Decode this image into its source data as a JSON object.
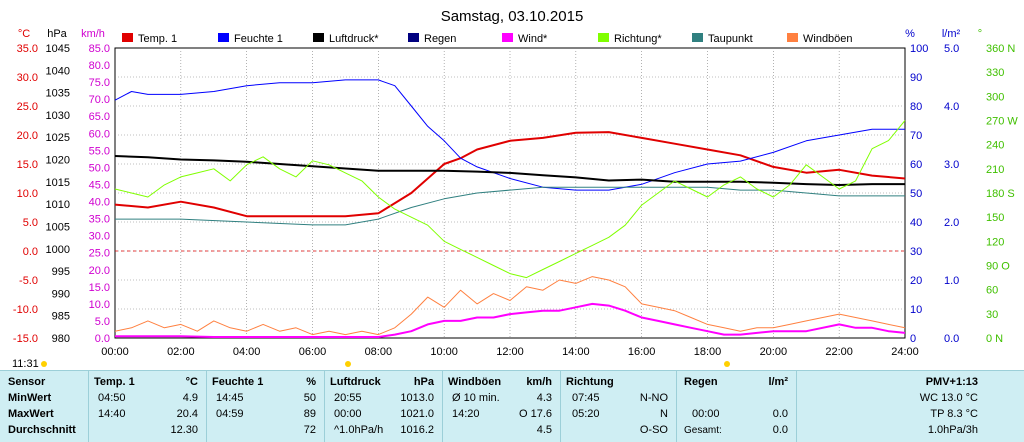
{
  "chart_data": {
    "type": "line",
    "title": "Samstag, 03.10.2015",
    "time_label": "11:31",
    "x_ticks": [
      "00:00",
      "02:00",
      "04:00",
      "06:00",
      "08:00",
      "10:00",
      "12:00",
      "14:00",
      "16:00",
      "18:00",
      "20:00",
      "22:00",
      "24:00"
    ],
    "axes": {
      "temp": {
        "unit": "°C",
        "ticks": [
          "35.0",
          "30.0",
          "25.0",
          "20.0",
          "15.0",
          "10.0",
          "5.0",
          "0.0",
          "-5.0",
          "-10.0",
          "-15.0"
        ],
        "range": [
          -15,
          35
        ],
        "color": "#e00000"
      },
      "press": {
        "unit": "hPa",
        "ticks": [
          "1045",
          "1040",
          "1035",
          "1030",
          "1025",
          "1020",
          "1015",
          "1010",
          "1005",
          "1000",
          "995",
          "990",
          "985",
          "980"
        ],
        "range": [
          980,
          1045
        ],
        "color": "#000000"
      },
      "wind": {
        "unit": "km/h",
        "ticks": [
          "85.0",
          "80.0",
          "75.0",
          "70.0",
          "65.0",
          "60.0",
          "55.0",
          "50.0",
          "45.0",
          "40.0",
          "35.0",
          "30.0",
          "25.0",
          "20.0",
          "15.0",
          "10.0",
          "5.0",
          "0.0"
        ],
        "range": [
          0,
          85
        ],
        "color": "#d000d0"
      },
      "hum": {
        "unit": "%",
        "ticks": [
          "100",
          "90",
          "80",
          "70",
          "60",
          "50",
          "40",
          "30",
          "20",
          "10",
          "0"
        ],
        "range": [
          0,
          100
        ],
        "color": "#0000cc"
      },
      "rain": {
        "unit": "l/m²",
        "ticks": [
          "5.0",
          "4.0",
          "3.0",
          "2.0",
          "1.0",
          "0.0"
        ],
        "range": [
          0,
          5
        ],
        "color": "#0000cc"
      },
      "dir": {
        "unit": "°",
        "ticks": [
          "360 N",
          "330",
          "300",
          "270 W",
          "240",
          "210",
          "180 S",
          "150",
          "120",
          "90 O",
          "60",
          "30",
          "0 N"
        ],
        "range": [
          0,
          360
        ],
        "color": "#40c000"
      }
    },
    "legend": [
      {
        "name": "Temp. 1",
        "color": "#e00000"
      },
      {
        "name": "Feuchte 1",
        "color": "#0000ff"
      },
      {
        "name": "Luftdruck*",
        "color": "#000000"
      },
      {
        "name": "Regen",
        "color": "#000080"
      },
      {
        "name": "Wind*",
        "color": "#ff00ff"
      },
      {
        "name": "Richtung*",
        "color": "#80ff00"
      },
      {
        "name": "Taupunkt",
        "color": "#308080"
      },
      {
        "name": "Windböen",
        "color": "#ff8040"
      }
    ],
    "series": [
      {
        "key": "temp",
        "axis": "temp",
        "color": "#e00000",
        "width": 2,
        "x": [
          0,
          1,
          2,
          3,
          4,
          5,
          6,
          7,
          8,
          9,
          10,
          10.5,
          11,
          12,
          13,
          14,
          15,
          16,
          17,
          18,
          19,
          20,
          21,
          22,
          23,
          24
        ],
        "y": [
          8.0,
          7.5,
          8.5,
          7.5,
          6.0,
          6.0,
          6.0,
          6.0,
          6.5,
          10.0,
          15.0,
          16.0,
          17.5,
          19.0,
          19.5,
          20.4,
          20.5,
          19.5,
          18.5,
          17.5,
          16.5,
          14.5,
          13.5,
          14.0,
          13.0,
          12.5
        ]
      },
      {
        "key": "hum",
        "axis": "hum",
        "color": "#0000ff",
        "width": 1,
        "x": [
          0,
          0.5,
          1,
          2,
          3,
          4,
          5,
          6,
          7,
          8,
          8.5,
          9,
          9.5,
          10,
          10.5,
          11,
          12,
          13,
          14,
          15,
          16,
          17,
          18,
          19,
          20,
          21,
          22,
          23,
          24
        ],
        "y": [
          82,
          85,
          84,
          84,
          85,
          87,
          88,
          88,
          89,
          89,
          87,
          80,
          73,
          68,
          62,
          59,
          55,
          52,
          51,
          51,
          53,
          57,
          60,
          61,
          64,
          68,
          70,
          72,
          72
        ]
      },
      {
        "key": "press",
        "axis": "press",
        "color": "#000000",
        "width": 2,
        "x": [
          0,
          1,
          2,
          3,
          4,
          5,
          6,
          7,
          8,
          9,
          10,
          11,
          12,
          13,
          14,
          15,
          16,
          17,
          18,
          19,
          20,
          21,
          22,
          23,
          24
        ],
        "y": [
          1020.8,
          1020.5,
          1020,
          1019.8,
          1019.5,
          1019,
          1018.5,
          1018,
          1017.5,
          1017.5,
          1017.5,
          1017.3,
          1017,
          1016.5,
          1016,
          1015.3,
          1015.5,
          1015,
          1015,
          1015,
          1014.8,
          1014.5,
          1014.3,
          1014.5,
          1014.5
        ]
      },
      {
        "key": "dew",
        "axis": "temp",
        "color": "#308080",
        "width": 1,
        "x": [
          0,
          2,
          4,
          6,
          7,
          8,
          9,
          10,
          11,
          12,
          13,
          14,
          15,
          16,
          17,
          18,
          19,
          20,
          21,
          22,
          23,
          24
        ],
        "y": [
          5.5,
          5.5,
          5.0,
          4.5,
          4.5,
          5.5,
          7.5,
          9.0,
          10.0,
          10.5,
          11.0,
          11.0,
          11.0,
          11.0,
          11.0,
          11.0,
          10.5,
          10.5,
          10.0,
          9.5,
          9.5,
          9.5
        ]
      },
      {
        "key": "gust",
        "axis": "wind",
        "color": "#ff8040",
        "width": 1,
        "x": [
          0,
          0.5,
          1,
          1.5,
          2,
          2.5,
          3,
          3.5,
          4,
          4.5,
          5,
          5.5,
          6,
          6.5,
          7,
          7.5,
          8,
          8.5,
          9,
          9.5,
          10,
          10.5,
          11,
          11.5,
          12,
          12.5,
          13,
          13.5,
          14,
          14.5,
          15,
          15.5,
          16,
          16.5,
          17,
          17.5,
          18,
          18.5,
          19,
          19.5,
          20,
          20.5,
          21,
          21.5,
          22,
          22.5,
          23,
          23.5,
          24
        ],
        "y": [
          2,
          3,
          5,
          3,
          4,
          2,
          5,
          3,
          2,
          4,
          2,
          3,
          1,
          2,
          1,
          2,
          1,
          3,
          7,
          12,
          9,
          14,
          10,
          13,
          11,
          15,
          14,
          17,
          16,
          18,
          17,
          15,
          10,
          9,
          8,
          6,
          4,
          3,
          2,
          3,
          3,
          4,
          5,
          6,
          7,
          6,
          5,
          4,
          3
        ]
      },
      {
        "key": "wind",
        "axis": "wind",
        "color": "#ff00ff",
        "width": 2,
        "x": [
          0,
          1,
          2,
          3,
          4,
          5,
          6,
          7,
          8,
          8.5,
          9,
          9.5,
          10,
          10.5,
          11,
          11.5,
          12,
          12.5,
          13,
          13.5,
          14,
          14.5,
          15,
          15.5,
          16,
          16.5,
          17,
          17.5,
          18,
          18.5,
          19,
          20,
          21,
          22,
          22.5,
          23,
          23.5,
          24
        ],
        "y": [
          0.5,
          0.5,
          0.5,
          0.3,
          0.3,
          0.3,
          0.3,
          0.3,
          0.3,
          1,
          2,
          4,
          5,
          5,
          6,
          6,
          7,
          7.5,
          8,
          8,
          9,
          10,
          9.5,
          8,
          6,
          5,
          4,
          3,
          2,
          1,
          1,
          2,
          2,
          4,
          3,
          3,
          2,
          1.5
        ]
      },
      {
        "key": "dir",
        "axis": "dir",
        "color": "#80ff00",
        "width": 1,
        "x": [
          0,
          0.5,
          1,
          1.5,
          2,
          2.5,
          3,
          3.5,
          4,
          4.5,
          5,
          5.5,
          6,
          6.5,
          7,
          7.5,
          8,
          8.5,
          9,
          9.5,
          10,
          10.5,
          11,
          11.5,
          12,
          12.5,
          13,
          13.5,
          14,
          14.5,
          15,
          15.5,
          16,
          16.5,
          17,
          17.5,
          18,
          18.5,
          19,
          19.5,
          20,
          20.5,
          21,
          21.5,
          22,
          22.5,
          23,
          23.5,
          24
        ],
        "y": [
          185,
          180,
          175,
          190,
          200,
          205,
          210,
          195,
          215,
          225,
          210,
          200,
          220,
          215,
          205,
          195,
          175,
          160,
          150,
          140,
          120,
          110,
          100,
          90,
          80,
          75,
          85,
          95,
          105,
          115,
          125,
          140,
          165,
          180,
          195,
          185,
          175,
          190,
          200,
          185,
          175,
          190,
          215,
          200,
          185,
          195,
          235,
          245,
          270
        ]
      }
    ]
  },
  "table": {
    "c1": {
      "header": "Sensor",
      "rows": [
        "MinWert",
        "MaxWert",
        "Durchschnitt"
      ]
    },
    "c2": {
      "header": "Temp. 1",
      "unit": "°C",
      "times": [
        "04:50",
        "14:40",
        ""
      ],
      "vals": [
        "4.9",
        "20.4",
        "12.30"
      ]
    },
    "c3": {
      "header": "Feuchte 1",
      "unit": "%",
      "times": [
        "14:45",
        "04:59",
        ""
      ],
      "vals": [
        "50",
        "89",
        "72"
      ]
    },
    "c4": {
      "header": "Luftdruck",
      "unit": "hPa",
      "times": [
        "20:55",
        "00:00",
        "^1.0hPa/h"
      ],
      "vals": [
        "1013.0",
        "1021.0",
        "1016.2"
      ]
    },
    "c5": {
      "header": "Windböen",
      "unit": "km/h",
      "times": [
        "Ø 10 min.",
        "14:20",
        ""
      ],
      "vals": [
        "4.3",
        "O 17.6",
        "4.5"
      ]
    },
    "c6": {
      "header": "Richtung",
      "times": [
        "07:45",
        "05:20",
        ""
      ],
      "vals": [
        "N-NO",
        "N",
        "O-SO"
      ]
    },
    "c7": {
      "header": "Regen",
      "unit": "l/m²",
      "times": [
        "",
        "00:00",
        "Gesamt:"
      ],
      "vals": [
        "",
        "0.0",
        "0.0"
      ]
    },
    "c8": {
      "header": "PMV+1:13",
      "rows": [
        "WC 13.0 °C",
        "TP 8.3 °C",
        "1.0hPa/3h"
      ]
    }
  }
}
